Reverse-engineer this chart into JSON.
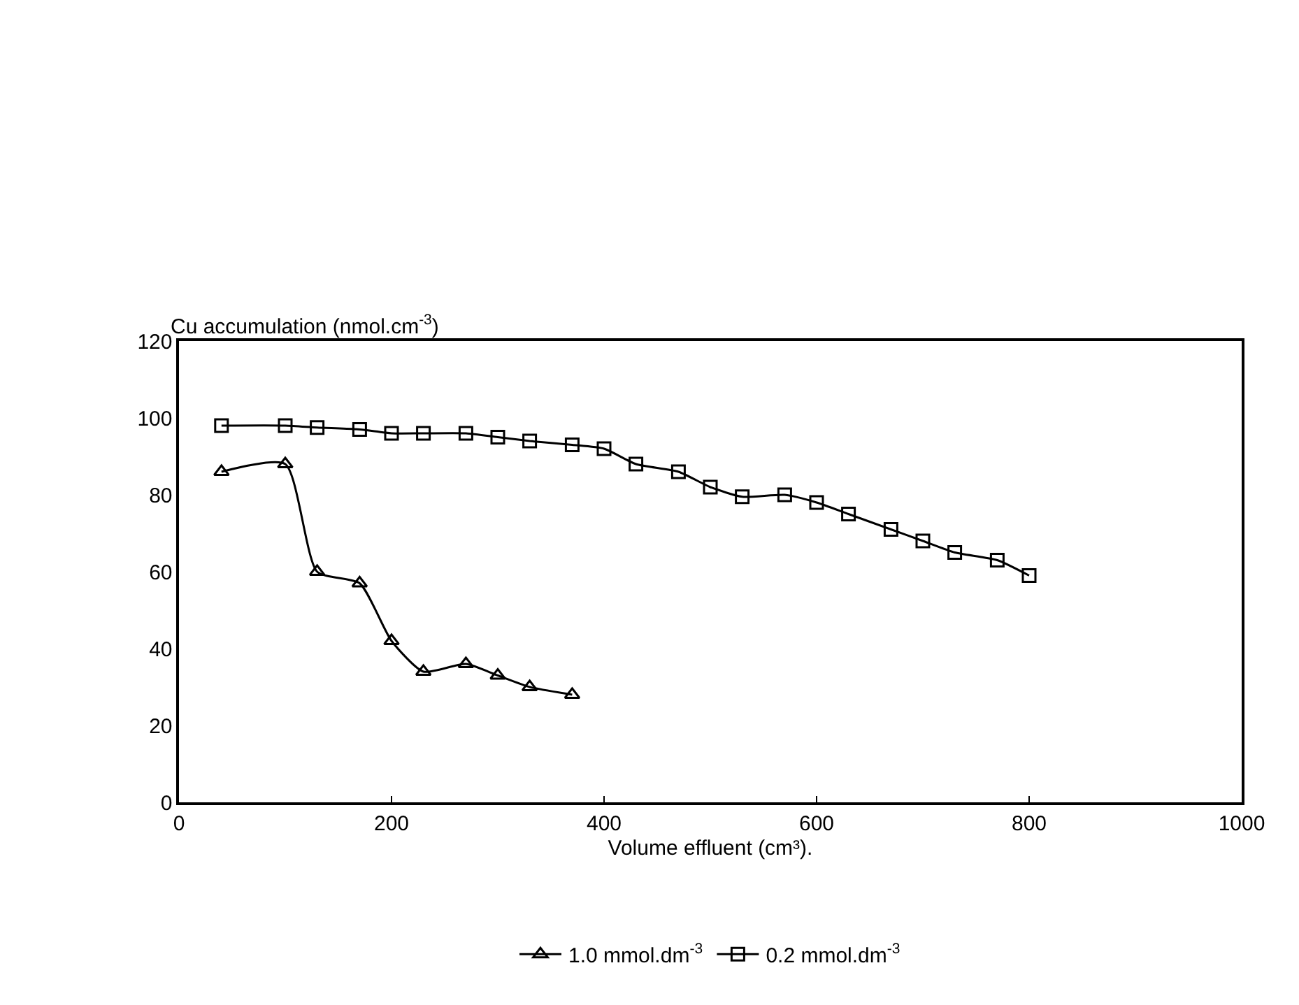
{
  "chart_data": {
    "type": "line",
    "ylabel": "Cu accumulation (nmol.cm$^{-3}$)",
    "xlabel": "Volume effluent (cm³).",
    "xlim": [
      0,
      1000
    ],
    "xticks": [
      0,
      200,
      400,
      600,
      800,
      1000
    ],
    "ylim": [
      0,
      120
    ],
    "yticks": [
      0,
      20,
      40,
      60,
      80,
      100,
      120
    ],
    "grid": false,
    "legend": "bottom",
    "line_style": "solid",
    "series": [
      {
        "name": "1.0 mmol.dm$^{-3}$",
        "color": "#000000",
        "marker": "triangle",
        "x": [
          40,
          100,
          130,
          170,
          200,
          230,
          270,
          300,
          330,
          370
        ],
        "values": [
          86,
          88,
          60,
          57,
          42,
          34,
          36,
          33,
          30,
          28
        ]
      },
      {
        "name": "0.2 mmol.dm$^{-3}$",
        "color": "#000000",
        "marker": "square",
        "x": [
          40,
          100,
          130,
          170,
          200,
          230,
          270,
          300,
          330,
          370,
          400,
          430,
          470,
          500,
          530,
          570,
          600,
          630,
          670,
          700,
          730,
          770,
          800
        ],
        "values": [
          98,
          98,
          97.5,
          97,
          96,
          96,
          96,
          95,
          94,
          93,
          92,
          88,
          86,
          82,
          79.5,
          80,
          78,
          75,
          71,
          68,
          65,
          63,
          59
        ]
      }
    ]
  }
}
